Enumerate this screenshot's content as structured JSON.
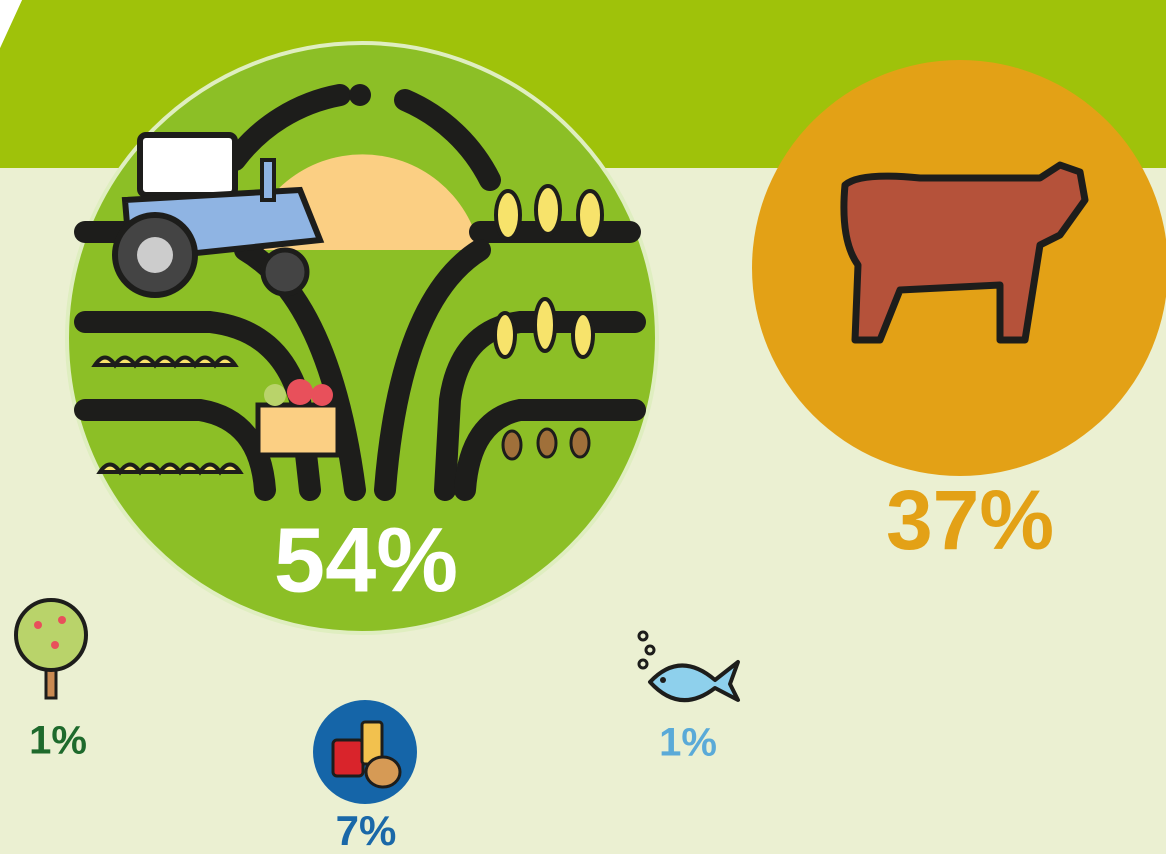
{
  "items": [
    {
      "label": "54%"
    },
    {
      "label": "37%"
    },
    {
      "label": "1%"
    },
    {
      "label": "7%"
    },
    {
      "label": "1%"
    }
  ]
}
